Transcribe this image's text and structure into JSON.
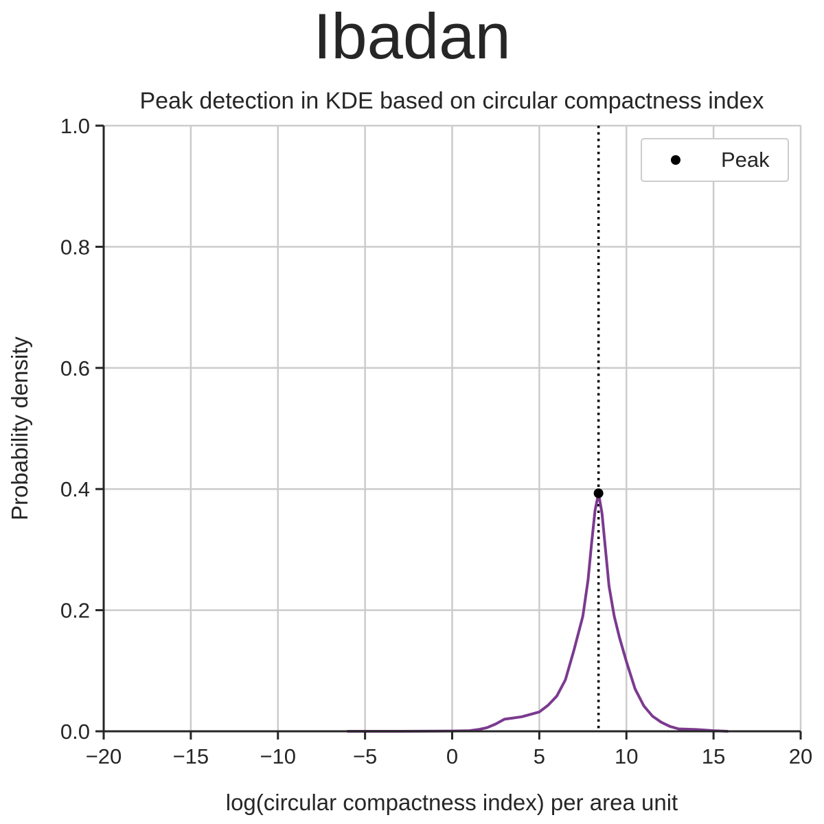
{
  "chart_data": {
    "type": "line",
    "title": "Ibadan",
    "subtitle": "Peak detection in KDE based on circular compactness index",
    "xlabel": "log(circular compactness index) per area unit",
    "ylabel": "Probability density",
    "xlim": [
      -20,
      20
    ],
    "ylim": [
      0,
      1
    ],
    "xticks": [
      -20,
      -15,
      -10,
      -5,
      0,
      5,
      10,
      15,
      20
    ],
    "xtick_labels": [
      "−20",
      "−15",
      "−10",
      "−5",
      "0",
      "5",
      "10",
      "15",
      "20"
    ],
    "yticks": [
      0,
      0.2,
      0.4,
      0.6,
      0.8,
      1
    ],
    "ytick_labels": [
      "0.0",
      "0.2",
      "0.4",
      "0.6",
      "0.8",
      "1.0"
    ],
    "grid": true,
    "legend_position": "top-right",
    "series": [
      {
        "kind": "kde-line",
        "color": "#7b3a8f",
        "x": [
          -6,
          -3,
          0,
          1,
          1.5,
          2,
          2.5,
          3,
          3.5,
          4,
          4.5,
          5,
          5.5,
          6,
          6.5,
          7,
          7.5,
          7.8,
          8,
          8.2,
          8.4,
          8.6,
          8.8,
          9,
          9.3,
          9.6,
          10,
          10.5,
          11,
          11.5,
          12,
          12.5,
          13,
          14,
          15,
          15.8
        ],
        "y": [
          0,
          0,
          0.0005,
          0.001,
          0.003,
          0.006,
          0.012,
          0.02,
          0.022,
          0.024,
          0.028,
          0.032,
          0.043,
          0.058,
          0.085,
          0.135,
          0.19,
          0.25,
          0.31,
          0.365,
          0.393,
          0.36,
          0.3,
          0.24,
          0.19,
          0.155,
          0.115,
          0.07,
          0.042,
          0.025,
          0.015,
          0.008,
          0.004,
          0.003,
          0.001,
          0
        ]
      },
      {
        "kind": "peak-marker",
        "name": "Peak",
        "color": "#000000",
        "x": [
          8.4
        ],
        "y": [
          0.393
        ]
      }
    ],
    "annotations": [
      {
        "kind": "vertical-dotted-line",
        "x": 8.4,
        "color": "#000000"
      }
    ]
  }
}
